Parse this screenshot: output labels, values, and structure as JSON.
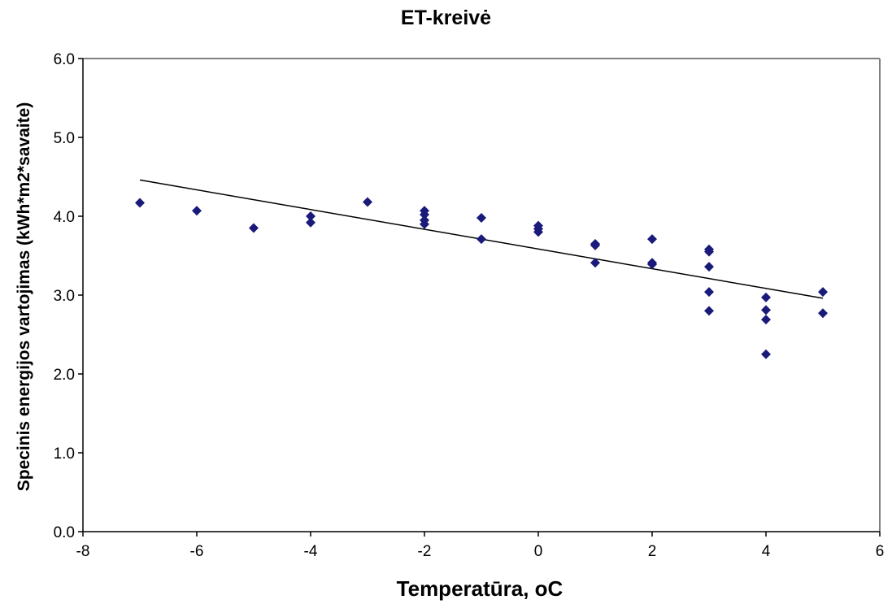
{
  "chart_data": {
    "type": "scatter",
    "title": "ET-kreivė",
    "xlabel": "Temperatūra, oC",
    "ylabel": "Specinis energijos vartojimas (kWh*m2*savaite)",
    "xlim": [
      -8,
      6
    ],
    "ylim": [
      0,
      6
    ],
    "x_ticks": [
      -8,
      -6,
      -4,
      -2,
      0,
      2,
      4,
      6
    ],
    "y_ticks": [
      0,
      1,
      2,
      3,
      4,
      5,
      6
    ],
    "y_tick_labels": [
      "0.0",
      "1.0",
      "2.0",
      "3.0",
      "4.0",
      "5.0",
      "6.0"
    ],
    "grid": false,
    "marker_color": "#1a1a7a",
    "trendline": {
      "type": "linear",
      "x": [
        -7,
        5
      ],
      "y": [
        4.46,
        2.96
      ],
      "color": "#000000"
    },
    "series": [
      {
        "points": [
          [
            -7,
            4.17
          ],
          [
            -6,
            4.07
          ],
          [
            -5,
            3.85
          ],
          [
            -4,
            4.0
          ],
          [
            -4,
            3.92
          ],
          [
            -3,
            4.18
          ],
          [
            -2,
            4.07
          ],
          [
            -2,
            4.02
          ],
          [
            -2,
            3.95
          ],
          [
            -2,
            3.9
          ],
          [
            -1,
            3.98
          ],
          [
            -1,
            3.71
          ],
          [
            0,
            3.88
          ],
          [
            0,
            3.84
          ],
          [
            0,
            3.8
          ],
          [
            1,
            3.65
          ],
          [
            1,
            3.63
          ],
          [
            1,
            3.41
          ],
          [
            2,
            3.71
          ],
          [
            2,
            3.41
          ],
          [
            2,
            3.39
          ],
          [
            3,
            3.58
          ],
          [
            3,
            3.55
          ],
          [
            3,
            3.36
          ],
          [
            3,
            3.04
          ],
          [
            3,
            2.8
          ],
          [
            4,
            2.97
          ],
          [
            4,
            2.81
          ],
          [
            4,
            2.69
          ],
          [
            4,
            2.25
          ],
          [
            5,
            3.04
          ],
          [
            5,
            2.77
          ]
        ]
      }
    ]
  }
}
